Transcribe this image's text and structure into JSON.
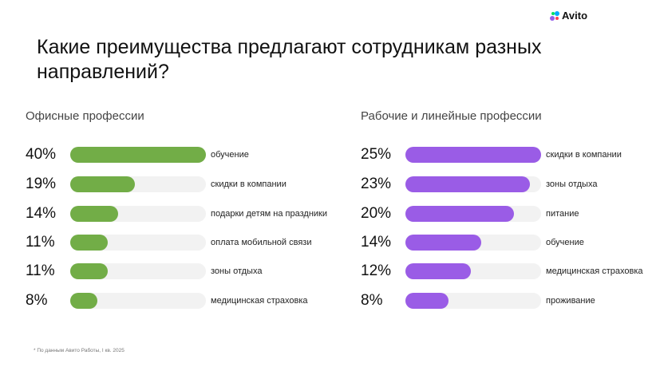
{
  "logo": {
    "text": "Avito"
  },
  "title": "Какие преимущества предлагают сотрудникам разных направлений?",
  "colors": {
    "office": "#72ad47",
    "workers": "#9a5ce6",
    "track": "#f2f2f2"
  },
  "office": {
    "heading": "Офисные профессии",
    "max": 40,
    "items": [
      {
        "pct": "40%",
        "value": 40,
        "label": "обучение"
      },
      {
        "pct": "19%",
        "value": 19,
        "label": "скидки в компании"
      },
      {
        "pct": "14%",
        "value": 14,
        "label": "подарки детям на праздники"
      },
      {
        "pct": "11%",
        "value": 11,
        "label": "оплата мобильной связи"
      },
      {
        "pct": "11%",
        "value": 11,
        "label": "зоны отдыха"
      },
      {
        "pct": "8%",
        "value": 8,
        "label": "медицинская страховка"
      }
    ]
  },
  "workers": {
    "heading": "Рабочие и линейные профессии",
    "max": 25,
    "items": [
      {
        "pct": "25%",
        "value": 25,
        "label": "скидки в компании"
      },
      {
        "pct": "23%",
        "value": 23,
        "label": "зоны отдыха"
      },
      {
        "pct": "20%",
        "value": 20,
        "label": "питание"
      },
      {
        "pct": "14%",
        "value": 14,
        "label": "обучение"
      },
      {
        "pct": "12%",
        "value": 12,
        "label": "медицинская страховка"
      },
      {
        "pct": "8%",
        "value": 8,
        "label": "проживание"
      }
    ]
  },
  "footnote": "* По данным Авито Работы, I кв. 2025"
}
